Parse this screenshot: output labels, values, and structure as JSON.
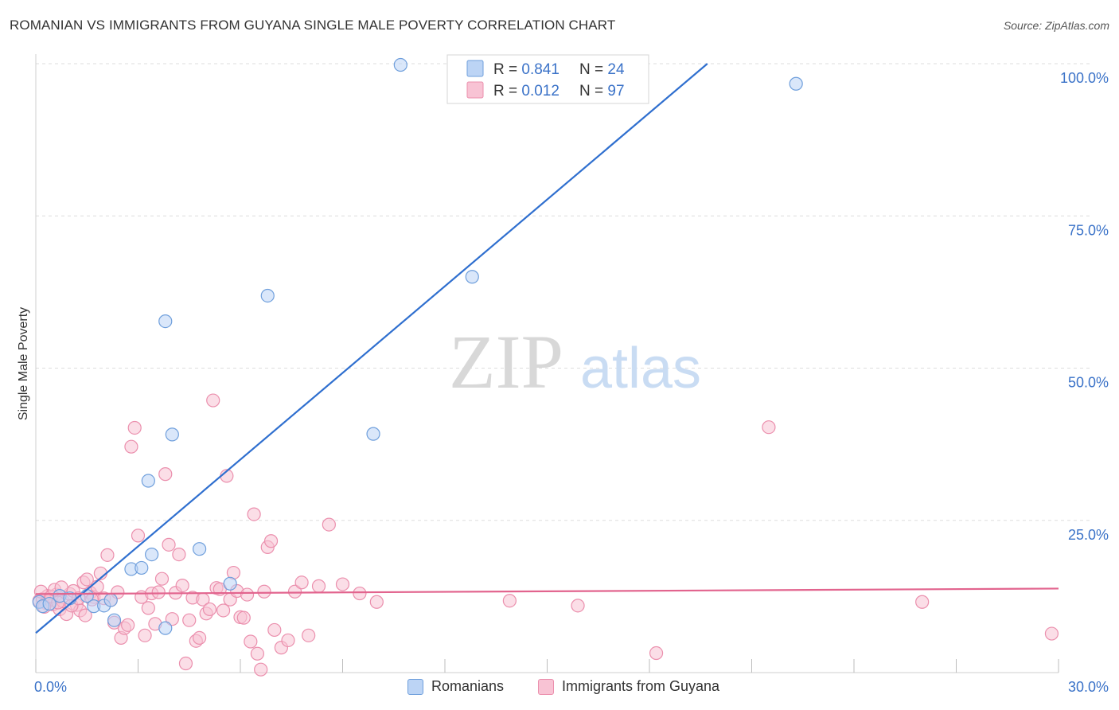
{
  "title": "ROMANIAN VS IMMIGRANTS FROM GUYANA SINGLE MALE POVERTY CORRELATION CHART",
  "source": "Source: ZipAtlas.com",
  "watermark": {
    "zip": "ZIP",
    "atlas": "atlas"
  },
  "colors": {
    "blue_fill": "#bcd4f5",
    "blue_stroke": "#6f9fdc",
    "blue_line": "#2f6fcf",
    "pink_fill": "#f8c3d4",
    "pink_stroke": "#eb8fad",
    "pink_line": "#e2648e",
    "axis_text": "#3a72c8",
    "grid": "#dddddd"
  },
  "legend": {
    "rows": [
      {
        "r_label": "R = ",
        "r_value": "0.841",
        "n_label": "N = ",
        "n_value": "24"
      },
      {
        "r_label": "R = ",
        "r_value": "0.012",
        "n_label": "N = ",
        "n_value": "97"
      }
    ]
  },
  "chart_data": {
    "type": "scatter",
    "title": "ROMANIAN VS IMMIGRANTS FROM GUYANA SINGLE MALE POVERTY CORRELATION CHART",
    "xlabel": "",
    "ylabel": "Single Male Poverty",
    "xlim": [
      0,
      30
    ],
    "ylim": [
      0,
      100
    ],
    "x_tick_labels": {
      "left": "0.0%",
      "right": "30.0%"
    },
    "y_ticks": [
      25,
      50,
      75,
      100
    ],
    "y_tick_labels": [
      "25.0%",
      "50.0%",
      "75.0%",
      "100.0%"
    ],
    "grid": true,
    "legend_position": "top-center",
    "series": [
      {
        "name": "Romanians",
        "R": 0.841,
        "N": 24,
        "trend": {
          "x": [
            0,
            19.7
          ],
          "y": [
            6.5,
            100
          ]
        },
        "points": [
          [
            0.1,
            11.6
          ],
          [
            0.2,
            10.9
          ],
          [
            0.4,
            11.3
          ],
          [
            0.7,
            12.6
          ],
          [
            1.0,
            12.2
          ],
          [
            1.5,
            12.6
          ],
          [
            1.7,
            10.9
          ],
          [
            2.0,
            11.0
          ],
          [
            2.3,
            8.6
          ],
          [
            2.8,
            17.0
          ],
          [
            3.1,
            17.2
          ],
          [
            3.3,
            31.5
          ],
          [
            3.4,
            19.4
          ],
          [
            3.8,
            57.7
          ],
          [
            4.0,
            39.1
          ],
          [
            4.8,
            20.3
          ],
          [
            5.7,
            14.6
          ],
          [
            6.8,
            61.9
          ],
          [
            9.9,
            39.2
          ],
          [
            10.7,
            99.8
          ],
          [
            12.8,
            65.0
          ],
          [
            22.3,
            96.7
          ],
          [
            3.8,
            7.3
          ],
          [
            2.2,
            11.9
          ]
        ]
      },
      {
        "name": "Immigrants from Guyana",
        "R": 0.012,
        "N": 97,
        "trend": {
          "x": [
            0,
            30
          ],
          "y": [
            12.9,
            13.8
          ]
        },
        "points": [
          [
            0.1,
            11.8
          ],
          [
            0.2,
            12.1
          ],
          [
            0.3,
            11.4
          ],
          [
            0.35,
            12.6
          ],
          [
            0.4,
            12.0
          ],
          [
            0.5,
            11.2
          ],
          [
            0.6,
            12.8
          ],
          [
            0.7,
            10.4
          ],
          [
            0.8,
            11.7
          ],
          [
            0.9,
            9.6
          ],
          [
            1.0,
            12.9
          ],
          [
            1.1,
            13.4
          ],
          [
            1.2,
            11.1
          ],
          [
            1.3,
            10.2
          ],
          [
            1.4,
            14.8
          ],
          [
            1.5,
            15.3
          ],
          [
            1.6,
            13.1
          ],
          [
            1.7,
            12.4
          ],
          [
            1.8,
            14.1
          ],
          [
            1.9,
            16.3
          ],
          [
            2.0,
            12.2
          ],
          [
            2.1,
            19.3
          ],
          [
            2.2,
            11.9
          ],
          [
            2.3,
            8.2
          ],
          [
            2.4,
            13.2
          ],
          [
            2.5,
            5.7
          ],
          [
            2.6,
            7.3
          ],
          [
            2.7,
            7.8
          ],
          [
            2.8,
            37.1
          ],
          [
            2.9,
            40.2
          ],
          [
            3.0,
            22.5
          ],
          [
            3.1,
            12.4
          ],
          [
            3.2,
            6.1
          ],
          [
            3.3,
            10.6
          ],
          [
            3.4,
            13.0
          ],
          [
            3.5,
            8.0
          ],
          [
            3.6,
            13.2
          ],
          [
            3.7,
            15.4
          ],
          [
            3.8,
            32.6
          ],
          [
            3.9,
            21.0
          ],
          [
            4.0,
            8.8
          ],
          [
            4.1,
            13.1
          ],
          [
            4.2,
            19.4
          ],
          [
            4.3,
            14.3
          ],
          [
            4.4,
            1.5
          ],
          [
            4.5,
            8.6
          ],
          [
            4.6,
            12.3
          ],
          [
            4.7,
            5.2
          ],
          [
            4.8,
            5.7
          ],
          [
            4.9,
            12.0
          ],
          [
            5.0,
            9.7
          ],
          [
            5.1,
            10.4
          ],
          [
            5.2,
            44.7
          ],
          [
            5.3,
            13.9
          ],
          [
            5.4,
            13.7
          ],
          [
            5.5,
            10.2
          ],
          [
            5.6,
            32.3
          ],
          [
            5.7,
            12.0
          ],
          [
            5.8,
            16.4
          ],
          [
            5.9,
            13.4
          ],
          [
            6.0,
            9.1
          ],
          [
            6.1,
            9.0
          ],
          [
            6.2,
            12.8
          ],
          [
            6.3,
            5.1
          ],
          [
            6.4,
            26.0
          ],
          [
            6.5,
            3.1
          ],
          [
            6.6,
            0.5
          ],
          [
            6.7,
            13.3
          ],
          [
            6.8,
            20.6
          ],
          [
            6.9,
            21.6
          ],
          [
            7.0,
            7.0
          ],
          [
            7.2,
            4.1
          ],
          [
            7.4,
            5.3
          ],
          [
            7.6,
            13.3
          ],
          [
            7.8,
            14.8
          ],
          [
            8.0,
            6.1
          ],
          [
            8.3,
            14.2
          ],
          [
            8.6,
            24.3
          ],
          [
            9.0,
            14.5
          ],
          [
            9.5,
            13.0
          ],
          [
            10.0,
            11.6
          ],
          [
            13.9,
            11.8
          ],
          [
            15.9,
            11.0
          ],
          [
            18.2,
            3.2
          ],
          [
            21.5,
            40.3
          ],
          [
            26.0,
            11.6
          ],
          [
            29.8,
            6.4
          ],
          [
            0.15,
            13.3
          ],
          [
            0.25,
            10.8
          ],
          [
            0.45,
            12.5
          ],
          [
            0.55,
            13.6
          ],
          [
            0.65,
            11.5
          ],
          [
            0.75,
            14.0
          ],
          [
            1.05,
            11.0
          ],
          [
            1.25,
            12.2
          ],
          [
            1.45,
            9.4
          ],
          [
            1.65,
            12.0
          ]
        ]
      }
    ]
  },
  "bottom_legend": [
    {
      "label": "Romanians"
    },
    {
      "label": "Immigrants from Guyana"
    }
  ]
}
